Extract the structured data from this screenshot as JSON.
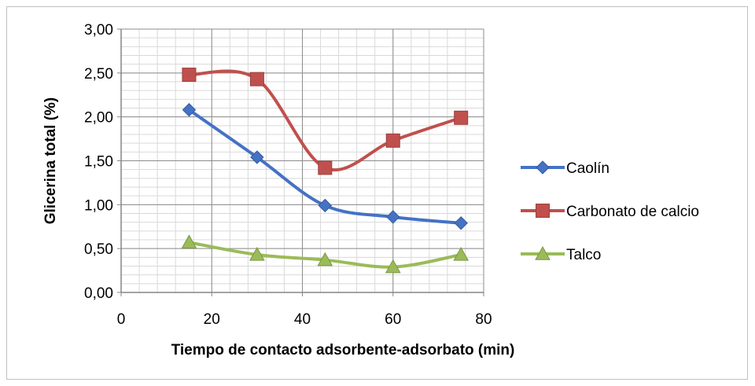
{
  "chart_data": {
    "type": "line",
    "xlabel": "Tiempo de contacto adsorbente-adsorbato (min)",
    "ylabel": "Glicerina total (%)",
    "xlim": [
      0,
      80
    ],
    "ylim": [
      0,
      3
    ],
    "x_ticks": [
      0,
      20,
      40,
      60,
      80
    ],
    "x_tick_labels": [
      "0",
      "20",
      "40",
      "60",
      "80"
    ],
    "y_ticks": [
      0,
      0.5,
      1.0,
      1.5,
      2.0,
      2.5,
      3.0
    ],
    "y_tick_labels": [
      "0,00",
      "0,50",
      "1,00",
      "1,50",
      "2,00",
      "2,50",
      "3,00"
    ],
    "grid": true,
    "minor_grid": true,
    "legend_position": "right",
    "series": [
      {
        "name": "Caolín",
        "color": "#4472C4",
        "marker": "diamond",
        "x": [
          15,
          30,
          45,
          60,
          75
        ],
        "y": [
          2.08,
          1.54,
          0.99,
          0.86,
          0.79
        ]
      },
      {
        "name": "Carbonato de calcio",
        "color": "#C0504D",
        "marker": "square",
        "x": [
          15,
          30,
          45,
          60,
          75
        ],
        "y": [
          2.48,
          2.43,
          1.42,
          1.73,
          1.99
        ]
      },
      {
        "name": "Talco",
        "color": "#9BBB59",
        "marker": "triangle",
        "x": [
          15,
          30,
          45,
          60,
          75
        ],
        "y": [
          0.57,
          0.43,
          0.37,
          0.29,
          0.43
        ]
      }
    ]
  }
}
